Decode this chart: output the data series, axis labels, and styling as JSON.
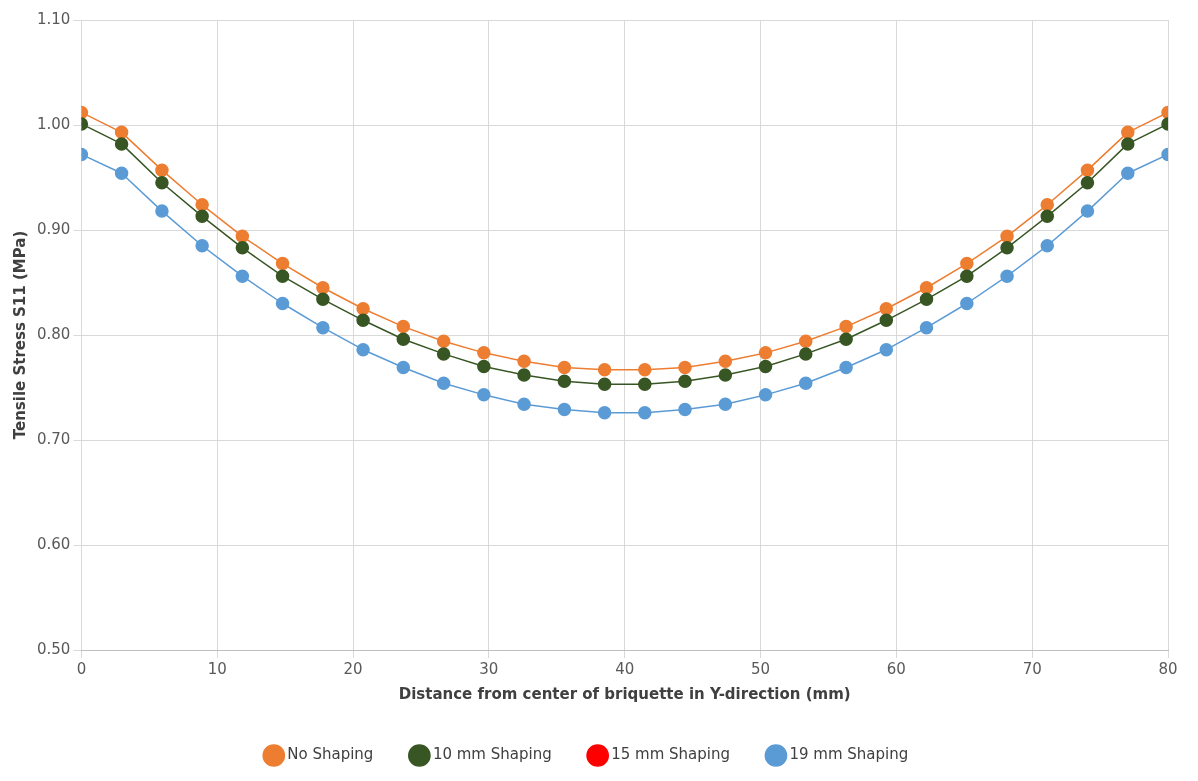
{
  "chart_data": {
    "type": "line",
    "xlabel": "Distance from center of briquette in Y-direction (mm)",
    "ylabel": "Tensile Stress S11 (MPa)",
    "x": [
      0,
      2.96,
      5.93,
      8.89,
      11.85,
      14.81,
      17.78,
      20.74,
      23.7,
      26.67,
      29.63,
      32.59,
      35.56,
      38.52,
      41.48,
      44.44,
      47.41,
      50.37,
      53.33,
      56.3,
      59.26,
      62.22,
      65.19,
      68.15,
      71.11,
      74.07,
      77.04,
      80
    ],
    "series": [
      {
        "name": "No Shaping",
        "color": "#ed7d31",
        "values": [
          1.012,
          0.993,
          0.957,
          0.924,
          0.894,
          0.868,
          0.845,
          0.825,
          0.808,
          0.794,
          0.783,
          0.775,
          0.769,
          0.767,
          0.767,
          0.769,
          0.775,
          0.783,
          0.794,
          0.808,
          0.825,
          0.845,
          0.868,
          0.894,
          0.924,
          0.957,
          0.993,
          1.012
        ]
      },
      {
        "name": "10 mm Shaping",
        "color": "#375623",
        "values": [
          1.001,
          0.982,
          0.945,
          0.913,
          0.883,
          0.856,
          0.834,
          0.814,
          0.796,
          0.782,
          0.77,
          0.762,
          0.756,
          0.753,
          0.753,
          0.756,
          0.762,
          0.77,
          0.782,
          0.796,
          0.814,
          0.834,
          0.856,
          0.883,
          0.913,
          0.945,
          0.982,
          1.001
        ]
      },
      {
        "name": "15 mm Shaping",
        "color": "#ff0000",
        "values": [
          null,
          null,
          null,
          null,
          null,
          null,
          null,
          null,
          null,
          null,
          null,
          null,
          null,
          null,
          null,
          null,
          null,
          null,
          null,
          null,
          null,
          null,
          null,
          null,
          null,
          null,
          null,
          null
        ]
      },
      {
        "name": "19 mm Shaping",
        "color": "#5b9bd5",
        "values": [
          0.972,
          0.954,
          0.918,
          0.885,
          0.856,
          0.83,
          0.807,
          0.786,
          0.769,
          0.754,
          0.743,
          0.734,
          0.729,
          0.726,
          0.726,
          0.729,
          0.734,
          0.743,
          0.754,
          0.769,
          0.786,
          0.807,
          0.83,
          0.856,
          0.885,
          0.918,
          0.954,
          0.972
        ]
      }
    ],
    "xlim": [
      0,
      80
    ],
    "xticks": [
      0,
      10,
      20,
      30,
      40,
      50,
      60,
      70,
      80
    ],
    "ylim": [
      0.5,
      1.1
    ],
    "yticks": [
      {
        "value": 0.5,
        "label": "0.50"
      },
      {
        "value": 0.6,
        "label": "0.60"
      },
      {
        "value": 0.7,
        "label": "0.70"
      },
      {
        "value": 0.8,
        "label": "0.80"
      },
      {
        "value": 0.9,
        "label": "0.90"
      },
      {
        "value": 1.0,
        "label": "1.00"
      },
      {
        "value": 1.1,
        "label": "1.10"
      }
    ],
    "grid": true,
    "legend": "bottom",
    "marker": "circle",
    "line_style": "solid"
  }
}
